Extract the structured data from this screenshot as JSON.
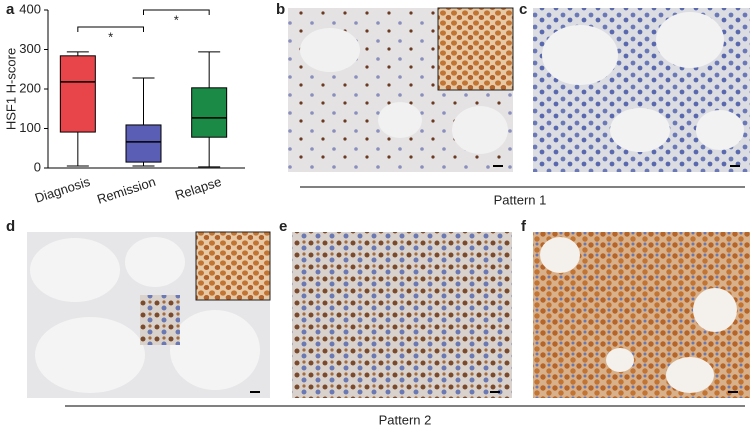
{
  "chart_data": {
    "type": "box",
    "y_label": "HSF1 H-score",
    "categories": [
      "Diagnosis",
      "Remission",
      "Relapse"
    ],
    "colors": [
      "#e8454b",
      "#5a5eb4",
      "#1b8a46"
    ],
    "stats": [
      {
        "min": 5,
        "q1": 91,
        "median": 218,
        "q3": 284,
        "max": 294
      },
      {
        "min": 5,
        "q1": 15,
        "median": 66,
        "q3": 109,
        "max": 228
      },
      {
        "min": 3,
        "q1": 78,
        "median": 127,
        "q3": 203,
        "max": 294
      }
    ],
    "ylim": [
      0,
      400
    ],
    "yticks": [
      0,
      100,
      200,
      300,
      400
    ],
    "annotations": [
      "*",
      "*"
    ]
  },
  "panels": {
    "labels": [
      "a",
      "b",
      "c",
      "d",
      "e",
      "f"
    ]
  },
  "pattern_labels": [
    "Pattern 1",
    "Pattern 2"
  ]
}
